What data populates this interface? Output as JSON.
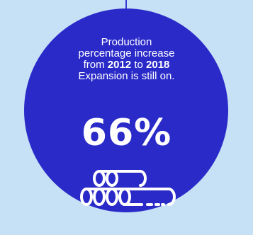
{
  "caption": {
    "line1": "Production",
    "line2": "percentage increase",
    "line3_prefix": "from ",
    "year_start": "2012",
    "line3_mid": " to ",
    "year_end": "2018",
    "line4": "Expansion is still on."
  },
  "stat": {
    "value": "66%"
  },
  "icons": {
    "pipes": "pipes-icon"
  },
  "colors": {
    "background": "#c6e0f5",
    "circle": "#2a2ac9",
    "text": "#ffffff"
  }
}
